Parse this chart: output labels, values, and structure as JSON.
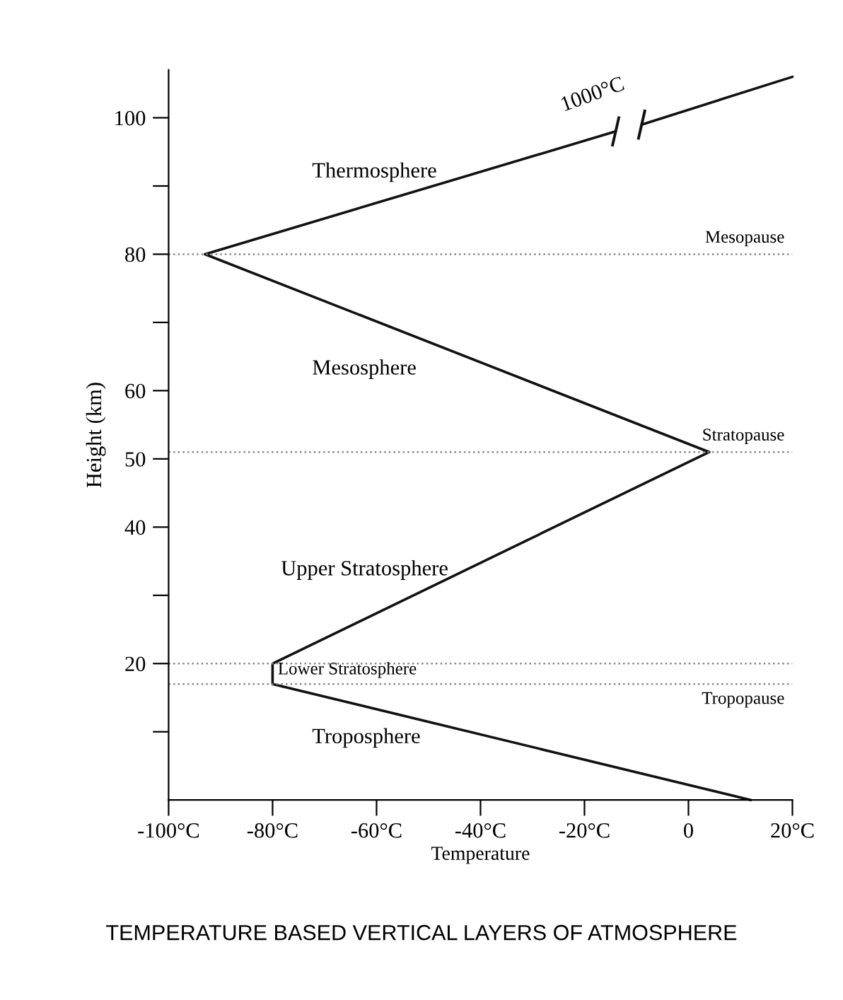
{
  "chart_data": {
    "type": "line",
    "title": "TEMPERATURE BASED VERTICAL LAYERS OF ATMOSPHERE",
    "xlabel": "Temperature",
    "ylabel": "Height (km)",
    "series": [
      {
        "color": "#111111",
        "x": [
          12,
          -80,
          -80,
          4,
          -93,
          -14,
          -11.5,
          -9,
          20
        ],
        "values": [
          0,
          17,
          20,
          51,
          80,
          98,
          null,
          99,
          106
        ]
      }
    ],
    "xlim": [
      -100,
      20
    ],
    "ylim": [
      0,
      107
    ],
    "xticks": [
      {
        "value": -100,
        "label": "-100°C"
      },
      {
        "value": -80,
        "label": "-80°C"
      },
      {
        "value": -60,
        "label": "-60°C"
      },
      {
        "value": -40,
        "label": "-40°C"
      },
      {
        "value": -20,
        "label": "-20°C"
      },
      0,
      {
        "value": 20,
        "label": "20°C"
      }
    ],
    "yticks": [
      {
        "value": 10,
        "label": null
      },
      20,
      {
        "value": 30,
        "label": null
      },
      40,
      50,
      60,
      {
        "value": 70,
        "label": null
      },
      80,
      {
        "value": 90,
        "label": null
      },
      100
    ],
    "ref_lines": [
      {
        "axis": "y",
        "value": 80,
        "label": "Mesopause",
        "color": "#888888",
        "line_style": "dotted"
      },
      {
        "axis": "y",
        "value": 51,
        "label": "Stratopause",
        "color": "#888888",
        "line_style": "dotted"
      },
      {
        "axis": "y",
        "value": 20,
        "color": "#888888",
        "line_style": "dotted"
      },
      {
        "axis": "y",
        "value": 17,
        "label": "Tropopause",
        "color": "#888888",
        "line_style": "dotted"
      }
    ],
    "annotations": [
      "Thermosphere",
      "Mesosphere",
      "Upper Stratosphere",
      "Lower Stratosphere",
      "Troposphere",
      "1000°C"
    ],
    "grid": false,
    "legend": false,
    "marker": "none",
    "line_style": "solid"
  }
}
